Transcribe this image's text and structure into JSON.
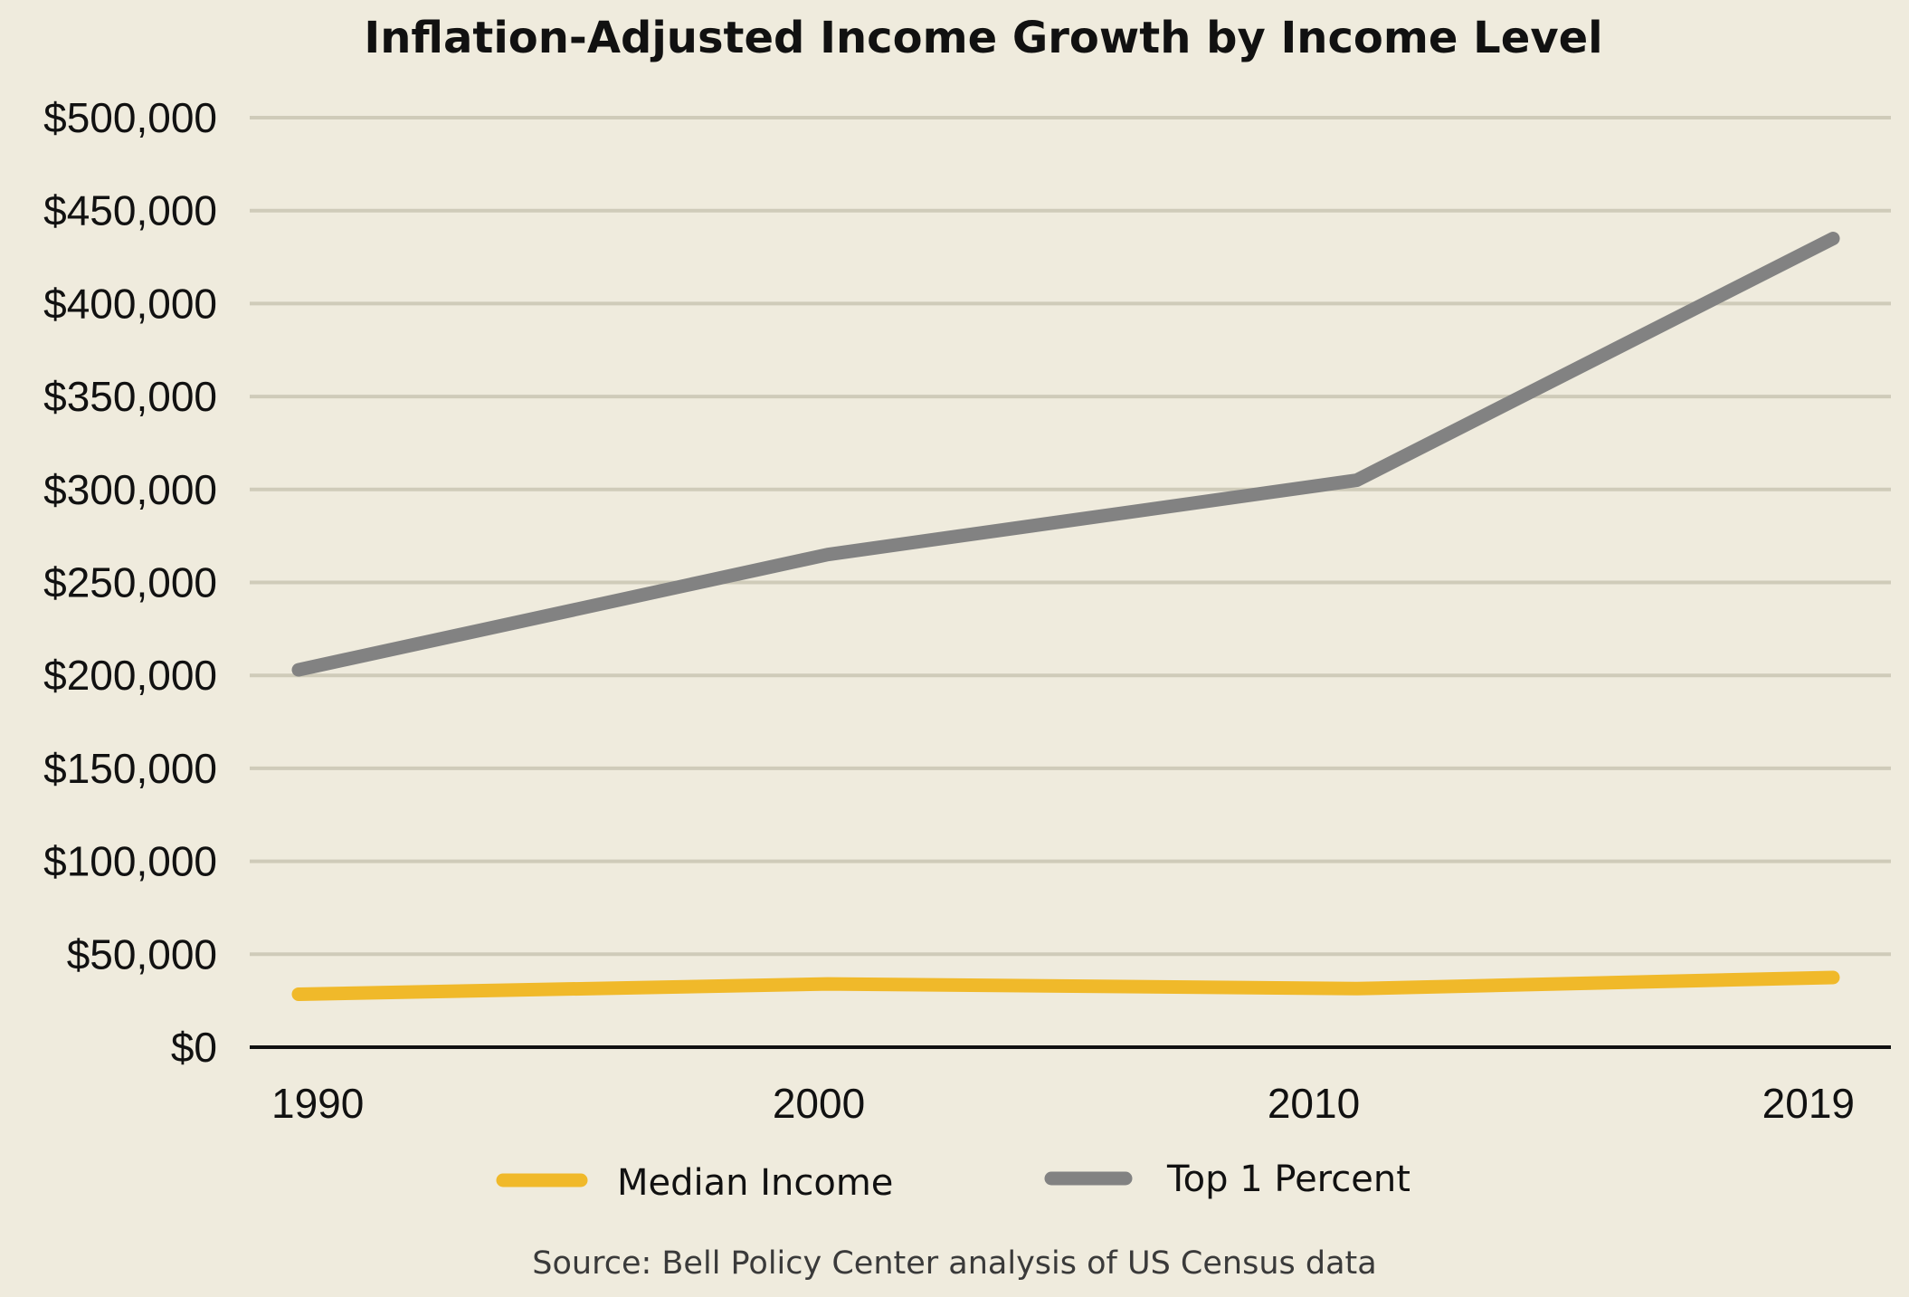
{
  "chart_data": {
    "type": "line",
    "title": "Inflation-Adjusted Income Growth by Income Level",
    "xlabel": "",
    "ylabel": "",
    "x": [
      1990,
      2000,
      2010,
      2019
    ],
    "x_tick_labels": [
      "1990",
      "2000",
      "2010",
      "2019"
    ],
    "ylim": [
      0,
      500000
    ],
    "y_ticks": [
      0,
      50000,
      100000,
      150000,
      200000,
      250000,
      300000,
      350000,
      400000,
      450000,
      500000
    ],
    "y_tick_labels": [
      "$0",
      "$50,000",
      "$100,000",
      "$150,000",
      "$200,000",
      "$250,000",
      "$300,000",
      "$350,000",
      "$400,000",
      "$450,000",
      "$500,000"
    ],
    "grid": true,
    "legend_position": "bottom",
    "series": [
      {
        "name": "Median Income",
        "color": "#f0b92a",
        "values": [
          28500,
          34000,
          31500,
          37500
        ]
      },
      {
        "name": "Top 1 Percent",
        "color": "#828282",
        "values": [
          203000,
          265000,
          305000,
          435000
        ]
      }
    ],
    "source": "Source: Bell Policy Center analysis of US Census data"
  }
}
